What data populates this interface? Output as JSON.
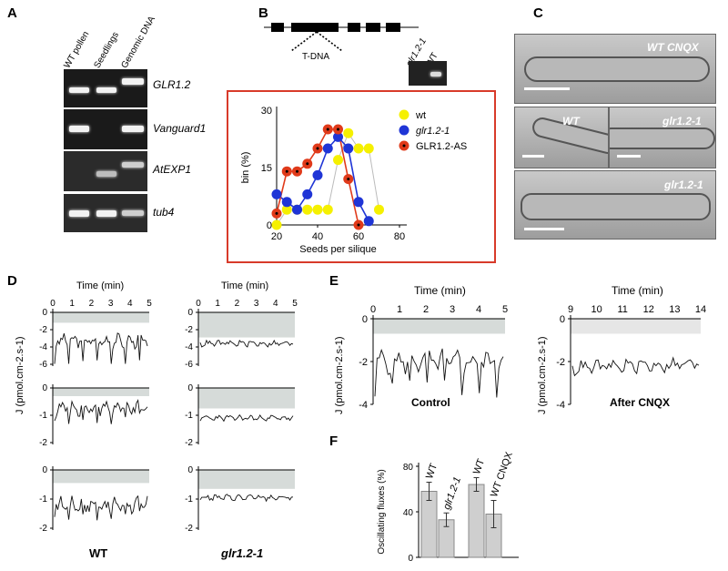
{
  "panels": {
    "A": "A",
    "B": "B",
    "C": "C",
    "D": "D",
    "E": "E",
    "F": "F"
  },
  "panel_a": {
    "lanes": [
      "WT pollen",
      "Seedlings",
      "Genomic DNA"
    ],
    "genes": [
      "GLR1.2",
      "Vanguard1",
      "AtEXP1",
      "tub4"
    ]
  },
  "panel_b": {
    "tdna_label": "T-DNA",
    "gel_lanes": [
      "glr1.2-1",
      "WT"
    ]
  },
  "panel_c": {
    "labels": [
      "WT  CNQX",
      "WT",
      "glr1.2-1",
      "glr1.2-1"
    ]
  },
  "panel_d": {
    "time_label": "Time (min)",
    "ylabel": "J (pmol.cm-2.s-1)",
    "group_labels": [
      "WT",
      "glr1.2-1"
    ],
    "x_ticks": [
      "0",
      "1",
      "2",
      "3",
      "4",
      "5"
    ],
    "y_ticks_row1": [
      "0",
      "-2",
      "-4",
      "-6"
    ],
    "y_ticks_row2": [
      "0",
      "-1",
      "-2"
    ],
    "y_ticks_row3": [
      "0",
      "-1",
      "-2"
    ]
  },
  "panel_e": {
    "time_label": "Time (min)",
    "ylabel": "J (pmol.cm-2.s-1)",
    "x_ticks_control": [
      "0",
      "1",
      "2",
      "3",
      "4",
      "5"
    ],
    "x_ticks_cnqx": [
      "9",
      "10",
      "11",
      "12",
      "13",
      "14"
    ],
    "y_ticks": [
      "0",
      "-2",
      "-4"
    ],
    "condition_labels": [
      "Control",
      "After CNQX"
    ]
  },
  "chart_data": [
    {
      "type": "line",
      "id": "seeds-per-silique",
      "xlabel": "Seeds per silique",
      "ylabel": "bin (%)",
      "xlim": [
        20,
        80
      ],
      "ylim": [
        0,
        30
      ],
      "x_ticks": [
        "20",
        "40",
        "60",
        "80"
      ],
      "y_ticks": [
        "0",
        "15",
        "30"
      ],
      "series": [
        {
          "name": "wt",
          "color": "#f5f000",
          "x": [
            20,
            25,
            30,
            35,
            40,
            45,
            50,
            55,
            60,
            65,
            70
          ],
          "y": [
            0,
            4,
            4,
            4,
            4,
            4,
            17,
            24,
            20,
            20,
            4
          ]
        },
        {
          "name": "glr1.2-1",
          "color": "#1f35d6",
          "x": [
            20,
            25,
            30,
            35,
            40,
            45,
            50,
            55,
            60,
            65
          ],
          "y": [
            8,
            6,
            4,
            8,
            13,
            20,
            23,
            20,
            6,
            1
          ]
        },
        {
          "name": "GLR1.2-AS",
          "color": "#e03a1a",
          "x": [
            20,
            25,
            30,
            35,
            40,
            45,
            50,
            55,
            60
          ],
          "y": [
            3,
            14,
            14,
            16,
            20,
            25,
            25,
            12,
            0
          ]
        }
      ]
    },
    {
      "type": "bar",
      "id": "oscillating-fluxes",
      "ylabel": "Oscillating fluxes (%)",
      "categories": [
        "WT",
        "glr1.2-1",
        "WT",
        "WT CNQX"
      ],
      "values": [
        58,
        33,
        64,
        38
      ],
      "errors": [
        8,
        6,
        6,
        12
      ],
      "ylim": [
        0,
        80
      ],
      "y_ticks": [
        "0",
        "40",
        "80"
      ]
    }
  ]
}
